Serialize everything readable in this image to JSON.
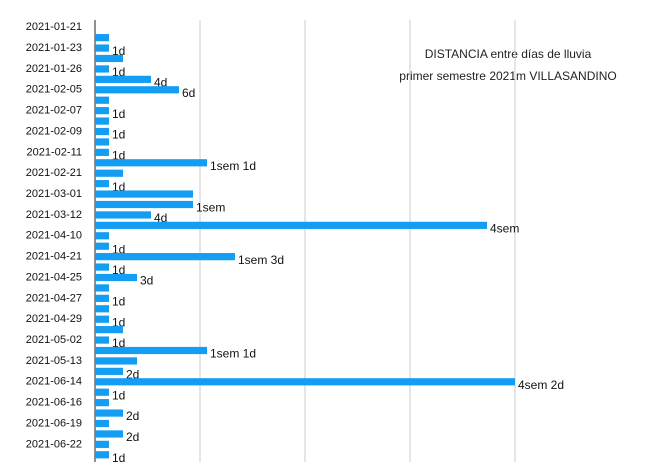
{
  "chart_data": {
    "type": "barh",
    "title": "DISTANCIA entre días de lluvia",
    "subtitle": "primer semestre 2021m VILLASANDINO",
    "categories": [
      "2021-01-21",
      null,
      "2021-01-23",
      null,
      "2021-01-26",
      null,
      "2021-02-05",
      null,
      "2021-02-07",
      null,
      "2021-02-09",
      null,
      "2021-02-11",
      null,
      "2021-02-21",
      null,
      "2021-03-01",
      null,
      "2021-03-12",
      null,
      "2021-04-10",
      null,
      "2021-04-21",
      null,
      "2021-04-25",
      null,
      "2021-04-27",
      null,
      "2021-04-29",
      null,
      "2021-05-02",
      null,
      "2021-05-13",
      null,
      "2021-06-14",
      null,
      "2021-06-16",
      null,
      "2021-06-19",
      null,
      "2021-06-22",
      null
    ],
    "values": [
      0,
      1,
      1,
      2,
      1,
      4,
      6,
      1,
      1,
      1,
      1,
      1,
      1,
      8,
      2,
      1,
      7,
      7,
      4,
      28,
      1,
      1,
      10,
      1,
      3,
      1,
      1,
      1,
      1,
      2,
      1,
      8,
      3,
      2,
      30,
      1,
      1,
      2,
      1,
      2,
      1,
      1
    ],
    "value_labels": [
      null,
      null,
      "1d",
      null,
      "1d",
      "4d",
      "6d",
      null,
      "1d",
      null,
      "1d",
      null,
      "1d",
      "1sem 1d",
      null,
      "1d",
      null,
      "1sem",
      "4d",
      "4sem",
      null,
      "1d",
      "1sem 3d",
      "1d",
      "3d",
      null,
      "1d",
      null,
      "1d",
      null,
      "1d",
      "1sem 1d",
      null,
      "2d",
      "4sem 2d",
      "1d",
      null,
      "2d",
      null,
      "2d",
      null,
      "1d"
    ],
    "color": "#139df3",
    "xlim": [
      0,
      37.5
    ],
    "xticks": [
      0,
      7.5,
      15,
      22.5,
      30
    ],
    "grid": true
  }
}
